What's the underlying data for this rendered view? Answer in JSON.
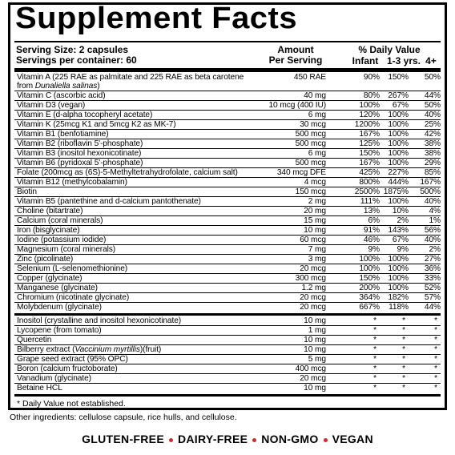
{
  "title": "Supplement Facts",
  "serving_size": "Serving Size: 2 capsules",
  "servings_per_container": "Servings per container: 60",
  "header": {
    "amount": "Amount",
    "per_serving": "Per Serving",
    "daily_value": "% Daily Value",
    "infant": "Infant",
    "toddler": "1-3 yrs.",
    "adult": "4+"
  },
  "vitamins_minerals": [
    {
      "name": [
        "Vitamin A (225 RAE as palmitate and 225 RAE as beta carotene from ",
        "Dunaliella salinas",
        ")"
      ],
      "amount": "450 RAE",
      "infant": "90%",
      "toddler": "150%",
      "adult": "50%"
    },
    {
      "name": "Vitamin C (ascorbic acid)",
      "amount": "40 mg",
      "infant": "80%",
      "toddler": "267%",
      "adult": "44%"
    },
    {
      "name": "Vitamin D3 (vegan)",
      "amount": "10 mcg (400 IU)",
      "infant": "100%",
      "toddler": "67%",
      "adult": "50%"
    },
    {
      "name": "Vitamin E (d-alpha tocopheryl acetate)",
      "amount": "6 mg",
      "infant": "120%",
      "toddler": "100%",
      "adult": "40%"
    },
    {
      "name": "Vitamin K (25mcg K1 and 5mcg K2 as MK-7)",
      "amount": "30 mcg",
      "infant": "1200%",
      "toddler": "100%",
      "adult": "25%"
    },
    {
      "name": "Vitamin B1 (benfotiamine)",
      "amount": "500 mcg",
      "infant": "167%",
      "toddler": "100%",
      "adult": "42%"
    },
    {
      "name": "Vitamin B2 (riboflavin 5'-phosphate)",
      "amount": "500 mcg",
      "infant": "125%",
      "toddler": "100%",
      "adult": "38%"
    },
    {
      "name": "Vitamin B3 (inositol hexonicotinate)",
      "amount": "6 mg",
      "infant": "150%",
      "toddler": "100%",
      "adult": "38%"
    },
    {
      "name": "Vitamin B6 (pyridoxal 5'-phosphate)",
      "amount": "500 mcg",
      "infant": "167%",
      "toddler": "100%",
      "adult": "29%"
    },
    {
      "name": "Folate (200mcg as (6S)-5-Methyltetrahydrofolate, calcium salt)",
      "amount": "340 mcg DFE",
      "infant": "425%",
      "toddler": "227%",
      "adult": "85%"
    },
    {
      "name": "Vitamin B12 (methylcobalamin)",
      "amount": "4 mcg",
      "infant": "800%",
      "toddler": "444%",
      "adult": "167%"
    },
    {
      "name": "Biotin",
      "amount": "150 mcg",
      "infant": "2500%",
      "toddler": "1875%",
      "adult": "500%"
    },
    {
      "name": "Vitamin B5 (pantethine and d-calcium pantothenate)",
      "amount": "2 mg",
      "infant": "111%",
      "toddler": "100%",
      "adult": "40%"
    },
    {
      "name": "Choline (bitartrate)",
      "amount": "20 mg",
      "infant": "13%",
      "toddler": "10%",
      "adult": "4%"
    },
    {
      "name": "Calcium (coral minerals)",
      "amount": "15 mg",
      "infant": "6%",
      "toddler": "2%",
      "adult": "1%"
    },
    {
      "name": "Iron (bisglycinate)",
      "amount": "10 mg",
      "infant": "91%",
      "toddler": "143%",
      "adult": "56%"
    },
    {
      "name": "Iodine (potassium iodide)",
      "amount": "60 mcg",
      "infant": "46%",
      "toddler": "67%",
      "adult": "40%"
    },
    {
      "name": "Magnesium (coral minerals)",
      "amount": "7 mg",
      "infant": "9%",
      "toddler": "9%",
      "adult": "2%"
    },
    {
      "name": "Zinc (picolinate)",
      "amount": "3 mg",
      "infant": "100%",
      "toddler": "100%",
      "adult": "27%"
    },
    {
      "name": "Selenium (L-selenomethionine)",
      "amount": "20 mcg",
      "infant": "100%",
      "toddler": "100%",
      "adult": "36%"
    },
    {
      "name": "Copper (glycinate)",
      "amount": "300 mcg",
      "infant": "150%",
      "toddler": "100%",
      "adult": "33%"
    },
    {
      "name": "Manganese (glycinate)",
      "amount": "1.2 mg",
      "infant": "200%",
      "toddler": "100%",
      "adult": "52%"
    },
    {
      "name": "Chromium (nicotinate glycinate)",
      "amount": "20 mcg",
      "infant": "364%",
      "toddler": "182%",
      "adult": "57%"
    },
    {
      "name": "Molybdenum (glycinate)",
      "amount": "20 mcg",
      "infant": "667%",
      "toddler": "118%",
      "adult": "44%"
    }
  ],
  "other_ingredients_list": [
    {
      "name": "Inositol (crystalline and inositol hexonicotinate)",
      "amount": "10 mg",
      "infant": "*",
      "toddler": "*",
      "adult": "*"
    },
    {
      "name": "Lycopene (from tomato)",
      "amount": "1 mg",
      "infant": "*",
      "toddler": "*",
      "adult": "*"
    },
    {
      "name": "Quercetin",
      "amount": "10 mg",
      "infant": "*",
      "toddler": "*",
      "adult": "*"
    },
    {
      "name": [
        "Bilberry extract (",
        "Vaccinium myrtillis",
        ")(fruit)"
      ],
      "amount": "10 mg",
      "infant": "*",
      "toddler": "*",
      "adult": "*"
    },
    {
      "name": "Grape seed extract (95% OPC)",
      "amount": "5 mg",
      "infant": "*",
      "toddler": "*",
      "adult": "*"
    },
    {
      "name": "Boron (calcium fructoborate)",
      "amount": "400 mcg",
      "infant": "*",
      "toddler": "*",
      "adult": "*"
    },
    {
      "name": "Vanadium (glycinate)",
      "amount": "20 mcg",
      "infant": "*",
      "toddler": "*",
      "adult": "*"
    },
    {
      "name": "Betaine HCL",
      "amount": "10 mg",
      "infant": "*",
      "toddler": "*",
      "adult": "*"
    }
  ],
  "footnote": "* Daily Value not established.",
  "other_ingredients": "Other ingredients: cellulose capsule, rice hulls, and cellulose.",
  "claims": [
    "GLUTEN-FREE",
    "DAIRY-FREE",
    "NON-GMO",
    "VEGAN"
  ]
}
